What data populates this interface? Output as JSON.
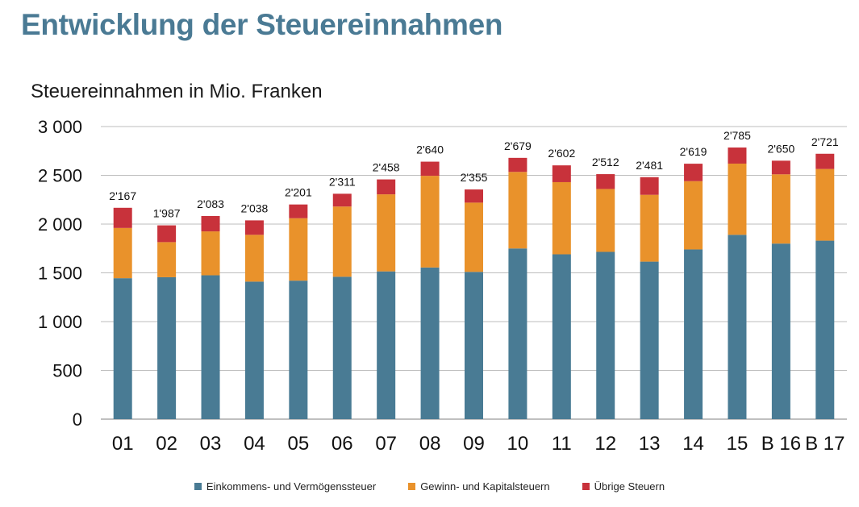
{
  "header": {
    "title": "Entwicklung der Steuereinnahmen",
    "unit_label": "Steuereinnahmen in Mio. Franken"
  },
  "colors": {
    "series_1": "#497b94",
    "series_2": "#e9922b",
    "series_3": "#c8323b",
    "grid": "#bdbdbd",
    "axis": "#9a9a9a"
  },
  "chart_data": {
    "type": "bar",
    "stacked": true,
    "title": "Entwicklung der Steuereinnahmen",
    "ylabel": "Steuereinnahmen in Mio. Franken",
    "xlabel": "",
    "ylim": [
      0,
      3000
    ],
    "yticks": [
      0,
      500,
      1000,
      1500,
      2000,
      2500,
      3000
    ],
    "ytick_labels": [
      "0",
      "500",
      "1 000",
      "1 500",
      "2 000",
      "2 500",
      "3 000"
    ],
    "grid": true,
    "legend_position": "bottom",
    "categories": [
      "01",
      "02",
      "03",
      "04",
      "05",
      "06",
      "07",
      "08",
      "09",
      "10",
      "11",
      "12",
      "13",
      "14",
      "15",
      "B 16",
      "B 17"
    ],
    "series": [
      {
        "name": "Einkommens- und Vermögenssteuer",
        "values": [
          1445,
          1455,
          1475,
          1410,
          1420,
          1460,
          1515,
          1555,
          1510,
          1750,
          1690,
          1715,
          1615,
          1740,
          1890,
          1800,
          1830
        ]
      },
      {
        "name": "Gewinn- und Kapitalsteuern",
        "values": [
          515,
          360,
          450,
          480,
          640,
          720,
          790,
          940,
          710,
          785,
          740,
          645,
          685,
          700,
          730,
          710,
          735
        ]
      },
      {
        "name": "Übrige Steuern",
        "values": [
          207,
          172,
          158,
          148,
          141,
          131,
          153,
          145,
          135,
          144,
          172,
          152,
          181,
          179,
          165,
          140,
          156
        ]
      }
    ],
    "totals": [
      2167,
      1987,
      2083,
      2038,
      2201,
      2311,
      2458,
      2640,
      2355,
      2679,
      2602,
      2512,
      2481,
      2619,
      2785,
      2650,
      2721
    ],
    "total_labels": [
      "2'167",
      "1'987",
      "2'083",
      "2'038",
      "2'201",
      "2'311",
      "2'458",
      "2'640",
      "2'355",
      "2'679",
      "2'602",
      "2'512",
      "2'481",
      "2'619",
      "2'785",
      "2'650",
      "2'721"
    ]
  }
}
